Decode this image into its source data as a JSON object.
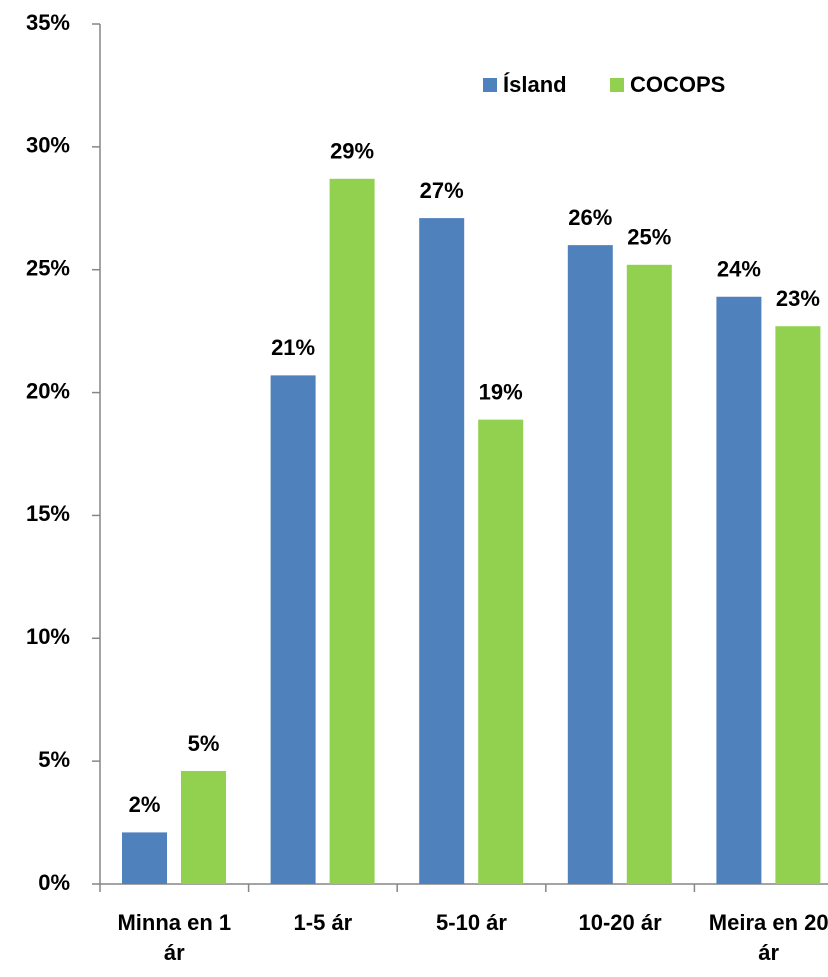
{
  "chart_data": {
    "type": "bar",
    "categories": [
      "Minna en 1 ár",
      "1-5 ár",
      "5-10 ár",
      "10-20 ár",
      "Meira en 20 ár"
    ],
    "series": [
      {
        "name": "Ísland",
        "color": "#4f81bd",
        "values": [
          2.1,
          20.7,
          27.1,
          26.0,
          23.9
        ],
        "value_labels": [
          "2%",
          "21%",
          "27%",
          "26%",
          "24%"
        ]
      },
      {
        "name": "COCOPS",
        "color": "#92d050",
        "values": [
          4.6,
          28.7,
          18.9,
          25.2,
          22.7
        ],
        "value_labels": [
          "5%",
          "29%",
          "19%",
          "25%",
          "23%"
        ]
      }
    ],
    "ylim": [
      0,
      35
    ],
    "yticks": [
      {
        "value": 0,
        "label": "0%"
      },
      {
        "value": 5,
        "label": "5%"
      },
      {
        "value": 10,
        "label": "10%"
      },
      {
        "value": 15,
        "label": "15%"
      },
      {
        "value": 20,
        "label": "20%"
      },
      {
        "value": 25,
        "label": "25%"
      },
      {
        "value": 30,
        "label": "30%"
      },
      {
        "value": 35,
        "label": "35%"
      }
    ],
    "legend": "top-right"
  }
}
